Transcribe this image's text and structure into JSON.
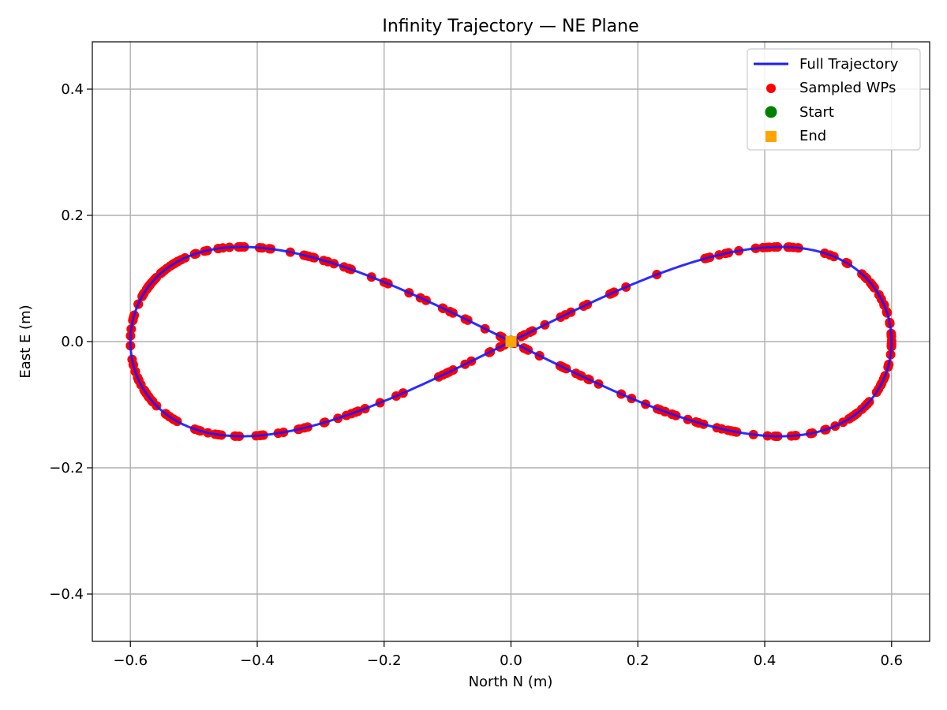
{
  "chart_data": {
    "type": "line",
    "title": "Infinity Trajectory — NE Plane",
    "xlabel": "North N (m)",
    "ylabel": "East E (m)",
    "xlim": [
      -0.66,
      0.66
    ],
    "ylim": [
      -0.475,
      0.475
    ],
    "grid": true,
    "legend_position": "top-right",
    "x_ticks": [
      {
        "value": -0.6,
        "label": "−0.6"
      },
      {
        "value": -0.4,
        "label": "−0.4"
      },
      {
        "value": -0.2,
        "label": "−0.2"
      },
      {
        "value": 0.0,
        "label": "0.0"
      },
      {
        "value": 0.2,
        "label": "0.2"
      },
      {
        "value": 0.4,
        "label": "0.4"
      },
      {
        "value": 0.6,
        "label": "0.6"
      }
    ],
    "y_ticks": [
      {
        "value": -0.4,
        "label": "−0.4"
      },
      {
        "value": -0.2,
        "label": "−0.2"
      },
      {
        "value": 0.0,
        "label": "0.0"
      },
      {
        "value": 0.2,
        "label": "0.2"
      },
      {
        "value": 0.4,
        "label": "0.4"
      }
    ],
    "trajectory": {
      "name": "Full Trajectory",
      "color": "#1a1aff",
      "shape": "lemniscate",
      "amplitude_north": 0.6,
      "amplitude_east": 0.15
    },
    "sampled_waypoints": {
      "name": "Sampled WPs",
      "color": "#ff0000",
      "count": 320
    },
    "start": {
      "name": "Start",
      "color": "#008000",
      "n": 0.0,
      "e": 0.0
    },
    "end": {
      "name": "End",
      "color": "#ffa500",
      "n": 0.0,
      "e": 0.0
    }
  }
}
